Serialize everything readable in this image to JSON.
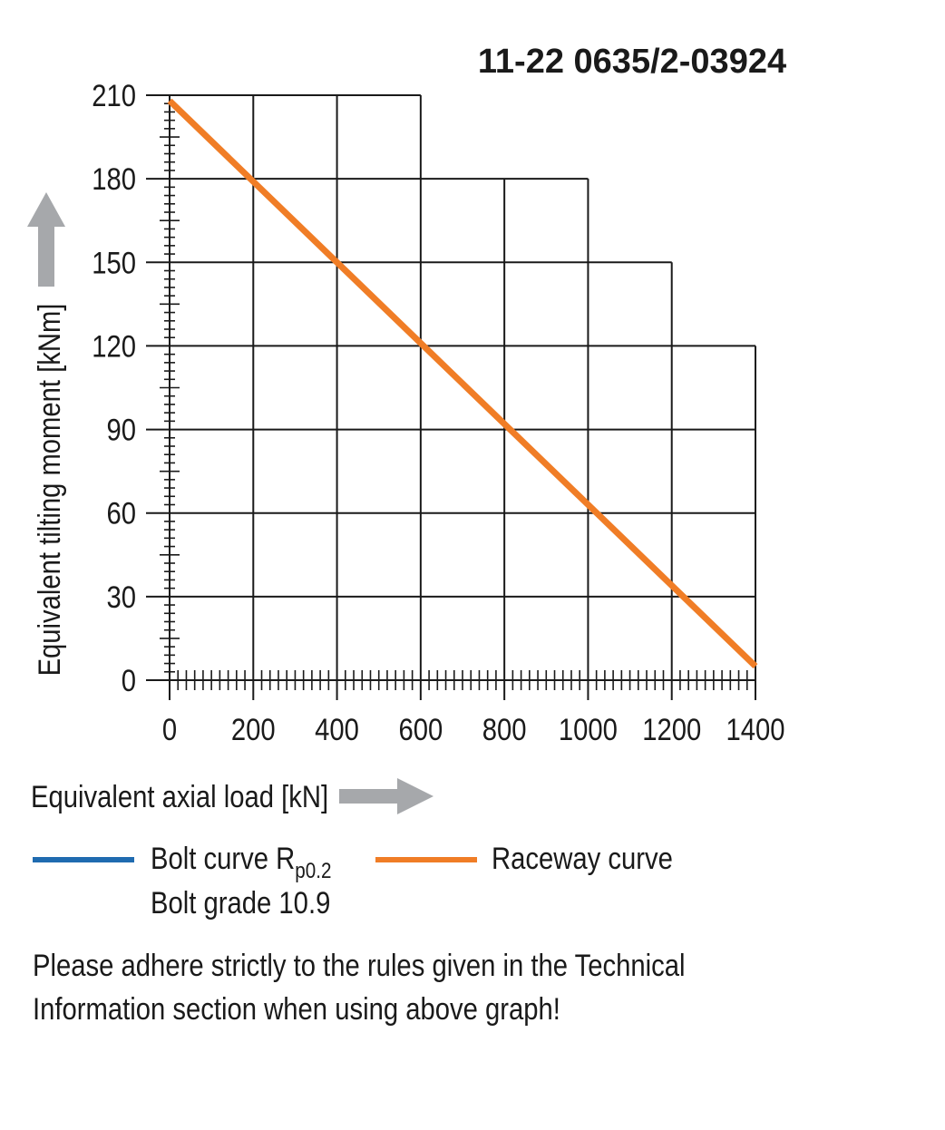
{
  "title": "11-22 0635/2-03924",
  "chart_data": {
    "type": "line",
    "title": "11-22 0635/2-03924",
    "xlabel": "Equivalent axial load [kN]",
    "ylabel": "Equivalent tilting moment [kNm]",
    "xlim": [
      0,
      1400
    ],
    "ylim": [
      0,
      210
    ],
    "x_ticks": [
      0,
      200,
      400,
      600,
      800,
      1000,
      1200,
      1400
    ],
    "y_ticks": [
      0,
      30,
      60,
      90,
      120,
      150,
      180,
      210
    ],
    "grid": "stepped",
    "grid_envelope": [
      {
        "x_max": 600,
        "y_top": 210
      },
      {
        "x_max": 1000,
        "y_top": 180
      },
      {
        "x_max": 1200,
        "y_top": 150
      },
      {
        "x_max": 1400,
        "y_top": 120
      }
    ],
    "series": [
      {
        "name": "Raceway curve",
        "color": "#f07d26",
        "x": [
          0,
          1400
        ],
        "y": [
          208,
          5
        ]
      }
    ]
  },
  "legend": {
    "bolt_label": "Bolt curve  R",
    "bolt_sub": "p0.2",
    "bolt_grade": "Bolt grade 10.9",
    "bolt_color": "#1f6bb0",
    "raceway_label": "Raceway curve",
    "raceway_color": "#f07d26"
  },
  "arrow_color": "#a6a8ab",
  "note_line1": "Please adhere strictly to the rules given in the Technical",
  "note_line2": "Information section when using above graph!"
}
